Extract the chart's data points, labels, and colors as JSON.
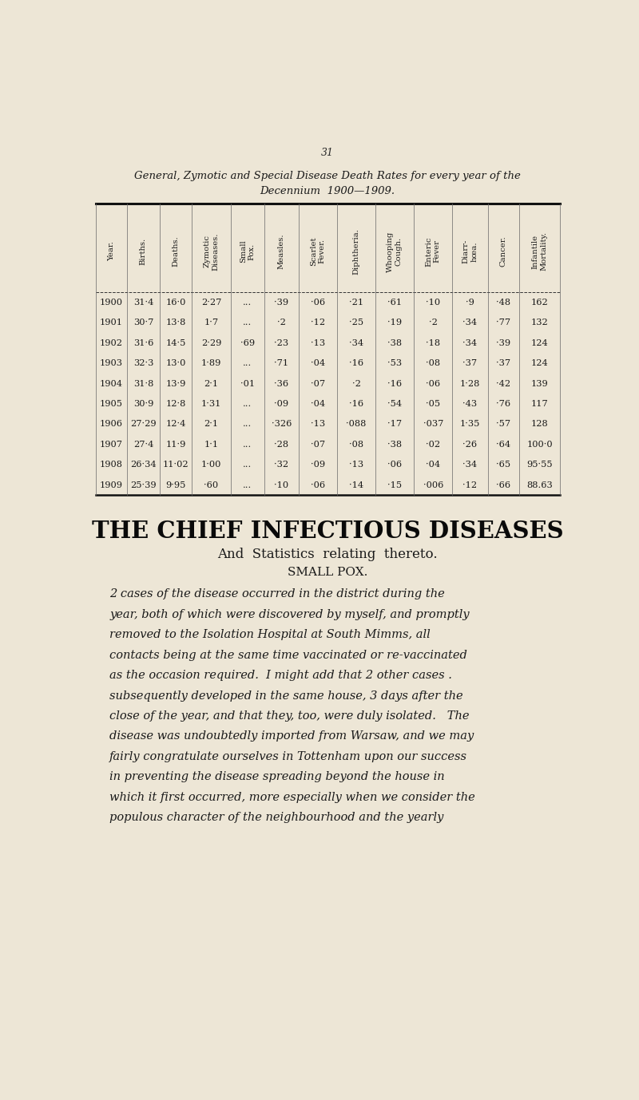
{
  "page_number": "31",
  "title_line1": "General, Zymotic and Special Disease Death Rates for every year of the",
  "title_line2": "Decennium  1900—1909.",
  "bg_color": "#ede6d6",
  "table_headers": [
    "Year.",
    "Births.",
    "Deaths.",
    "Zymotic\nDiseases.",
    "Small\nPox.",
    "Measles.",
    "Scarlet\nFever.",
    "Diphtheria.",
    "Whooping\nCough.",
    "Enteric\nFever",
    "Diarr-\nhœa.",
    "Cancer.",
    "Infantile\nMortality."
  ],
  "table_data": [
    [
      "1900",
      "31·4",
      "16·0",
      "2·27",
      "...",
      "·39",
      "·06",
      "·21",
      "·61",
      "·10",
      "·9",
      "·48",
      "162"
    ],
    [
      "1901",
      "30·7",
      "13·8",
      "1·7",
      "...",
      "·2",
      "·12",
      "·25",
      "·19",
      "·2",
      "·34",
      "·77",
      "132"
    ],
    [
      "1902",
      "31·6",
      "14·5",
      "2·29",
      "·69",
      "·23",
      "·13",
      "·34",
      "·38",
      "·18",
      "·34",
      "·39",
      "124"
    ],
    [
      "1903",
      "32·3",
      "13·0",
      "1·89",
      "...",
      "·71",
      "·04",
      "·16",
      "·53",
      "·08",
      "·37",
      "·37",
      "124"
    ],
    [
      "1904",
      "31·8",
      "13·9",
      "2·1",
      "·01",
      "·36",
      "·07",
      "·2",
      "·16",
      "·06",
      "1·28",
      "·42",
      "139"
    ],
    [
      "1905",
      "30·9",
      "12·8",
      "1·31",
      "...",
      "·09",
      "·04",
      "·16",
      "·54",
      "·05",
      "·43",
      "·76",
      "117"
    ],
    [
      "1906",
      "27·29",
      "12·4",
      "2·1",
      "...",
      "·326",
      "·13",
      "·088",
      "·17",
      "·037",
      "1·35",
      "·57",
      "128"
    ],
    [
      "1907",
      "27·4",
      "11·9",
      "1·1",
      "...",
      "·28",
      "·07",
      "·08",
      "·38",
      "·02",
      "·26",
      "·64",
      "100·0"
    ],
    [
      "1908",
      "26·34",
      "11·02",
      "1·00",
      "...",
      "·32",
      "·09",
      "·13",
      "·06",
      "·04",
      "·34",
      "·65",
      "95·55"
    ],
    [
      "1909",
      "25·39",
      "9·95",
      "·60",
      "...",
      "·10",
      "·06",
      "·14",
      "·15",
      "·006",
      "·12",
      "·66",
      "88.63"
    ]
  ],
  "section_title": "THE CHIEF INFECTIOUS DISEASES",
  "section_subtitle": "And  Statistics  relating  thereto.",
  "subsection_title": "SMALL POX.",
  "para_lines": [
    "2 cases of the disease occurred in the district during the",
    "year, both of which were discovered by myself, and promptly",
    "removed to the Isolation Hospital at South Mimms, all",
    "contacts being at the same time vaccinated or re-vaccinated",
    "as the occasion required.  I might add that 2 other cases .",
    "subsequently developed in the same house, 3 days after the",
    "close of the year, and that they, too, were duly isolated.   The",
    "disease was undoubtedly imported from Warsaw, and we may",
    "fairly congratulate ourselves in Tottenham upon our success",
    "in preventing the disease spreading beyond the house in",
    "which it first occurred, more especially when we consider the",
    "populous character of the neighbourhood and the yearly"
  ]
}
